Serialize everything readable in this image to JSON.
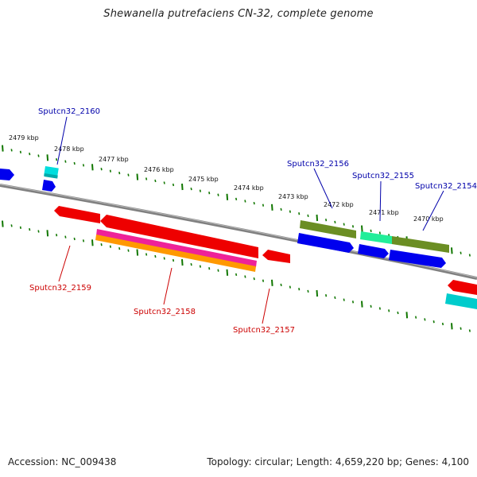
{
  "title": "Shewanella putrefaciens CN-32, complete genome",
  "footer": {
    "accession": "Accession: NC_009438",
    "summary": "Topology: circular; Length: 4,659,220 bp; Genes: 4,100"
  },
  "scale_labels": [
    "2479 kbp",
    "2478 kbp",
    "2477 kbp",
    "2476 kbp",
    "2475 kbp",
    "2474 kbp",
    "2473 kbp",
    "2472 kbp",
    "2471 kbp",
    "2470 kbp"
  ],
  "colors": {
    "forward_label": "#0000aa",
    "reverse_label": "#cc0000",
    "tick": "#117700",
    "backbone": "#888888",
    "blue": "#0000ee",
    "red": "#ee0000",
    "cyan": "#00dddd",
    "olive": "#6b8e23",
    "aqua_green": "#22ee99",
    "magenta": "#ee2299",
    "orange": "#ff9900"
  },
  "gene_labels": {
    "forward": [
      "Sputcn32_2160",
      "Sputcn32_2156",
      "Sputcn32_2155",
      "Sputcn32_2154"
    ],
    "reverse": [
      "Sputcn32_2159",
      "Sputcn32_2158",
      "Sputcn32_2157"
    ]
  }
}
